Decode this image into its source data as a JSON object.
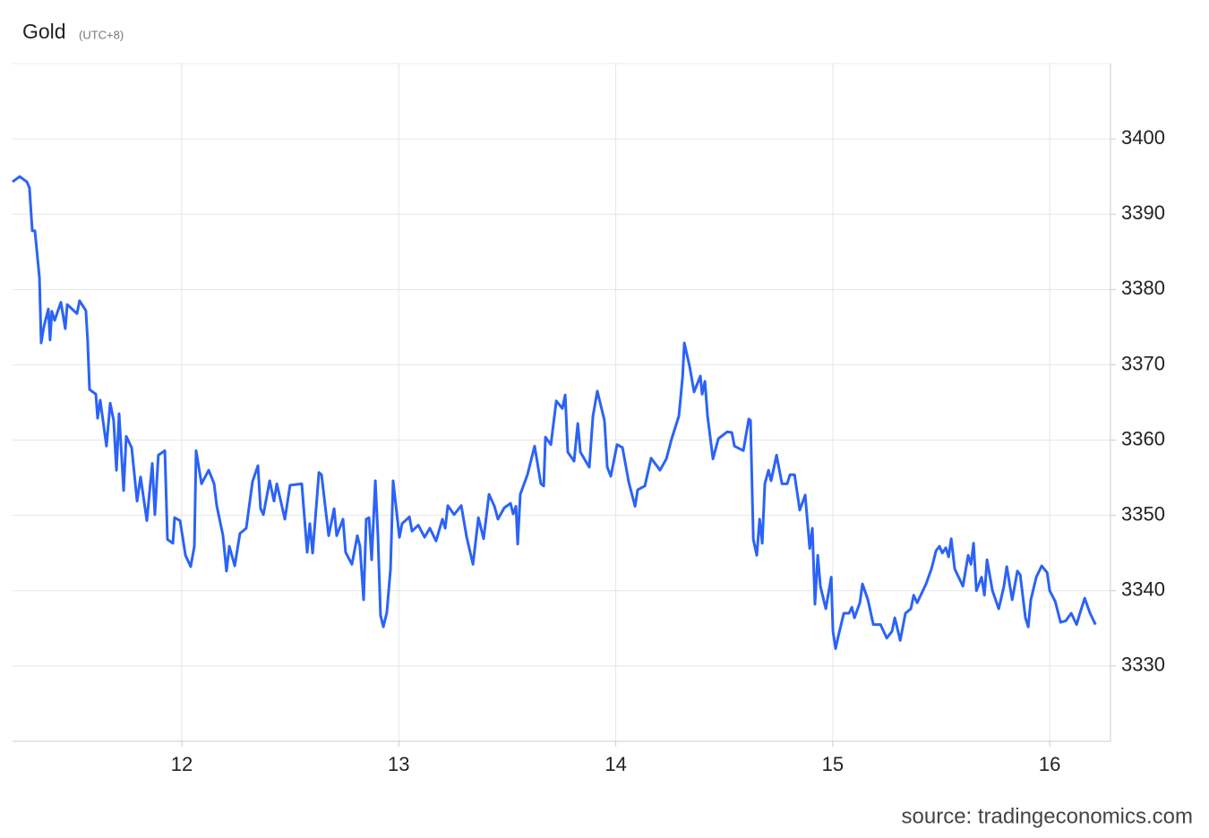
{
  "chart_data": {
    "type": "line",
    "title": "Gold",
    "subtitle": "(UTC+8)",
    "source": "source: tradingeconomics.com",
    "color": "#2b63f6",
    "grid": true,
    "y_axis_side": "right",
    "xlim": [
      11.22,
      16.28
    ],
    "ylim": [
      3320,
      3410
    ],
    "xticks": [
      12,
      13,
      14,
      15,
      16
    ],
    "yticks": [
      3330,
      3340,
      3350,
      3360,
      3370,
      3380,
      3390,
      3400
    ],
    "x": [
      11.22,
      11.253,
      11.286,
      11.298,
      11.311,
      11.323,
      11.344,
      11.352,
      11.364,
      11.385,
      11.393,
      11.401,
      11.414,
      11.443,
      11.463,
      11.472,
      11.517,
      11.529,
      11.558,
      11.566,
      11.575,
      11.604,
      11.612,
      11.624,
      11.653,
      11.67,
      11.686,
      11.699,
      11.711,
      11.732,
      11.744,
      11.769,
      11.794,
      11.81,
      11.839,
      11.864,
      11.876,
      11.892,
      11.922,
      11.934,
      11.959,
      11.967,
      11.992,
      12.017,
      12.041,
      12.058,
      12.066,
      12.091,
      12.124,
      12.149,
      12.161,
      12.19,
      12.206,
      12.219,
      12.244,
      12.268,
      12.297,
      12.326,
      12.351,
      12.363,
      12.376,
      12.405,
      12.425,
      12.438,
      12.475,
      12.499,
      12.553,
      12.578,
      12.59,
      12.603,
      12.632,
      12.644,
      12.677,
      12.702,
      12.714,
      12.743,
      12.755,
      12.784,
      12.809,
      12.821,
      12.838,
      12.85,
      12.863,
      12.875,
      12.892,
      12.904,
      12.916,
      12.929,
      12.945,
      12.962,
      12.974,
      13.003,
      13.015,
      13.049,
      13.061,
      13.09,
      13.119,
      13.143,
      13.172,
      13.201,
      13.214,
      13.226,
      13.255,
      13.288,
      13.313,
      13.342,
      13.367,
      13.391,
      13.416,
      13.441,
      13.457,
      13.486,
      13.515,
      13.527,
      13.54,
      13.548,
      13.56,
      13.593,
      13.626,
      13.655,
      13.668,
      13.676,
      13.701,
      13.726,
      13.754,
      13.767,
      13.779,
      13.808,
      13.825,
      13.837,
      13.878,
      13.895,
      13.915,
      13.948,
      13.961,
      13.977,
      14.006,
      14.031,
      14.06,
      14.089,
      14.101,
      14.134,
      14.163,
      14.204,
      14.233,
      14.258,
      14.291,
      14.308,
      14.316,
      14.341,
      14.361,
      14.39,
      14.398,
      14.411,
      14.423,
      14.448,
      14.473,
      14.514,
      14.535,
      14.547,
      14.588,
      14.613,
      14.621,
      14.634,
      14.65,
      14.663,
      14.675,
      14.687,
      14.704,
      14.716,
      14.741,
      14.766,
      14.79,
      14.803,
      14.824,
      14.848,
      14.873,
      14.894,
      14.906,
      14.918,
      14.931,
      14.943,
      14.968,
      14.993,
      15.001,
      15.013,
      15.026,
      15.051,
      15.075,
      15.088,
      15.1,
      15.125,
      15.137,
      15.162,
      15.187,
      15.22,
      15.249,
      15.273,
      15.286,
      15.311,
      15.335,
      15.36,
      15.373,
      15.389,
      15.43,
      15.455,
      15.476,
      15.492,
      15.505,
      15.521,
      15.534,
      15.546,
      15.562,
      15.6,
      15.624,
      15.637,
      15.649,
      15.662,
      15.686,
      15.699,
      15.711,
      15.736,
      15.765,
      15.789,
      15.802,
      15.827,
      15.851,
      15.864,
      15.888,
      15.901,
      15.913,
      15.938,
      15.963,
      15.988,
      16.0,
      16.025,
      16.05,
      16.074,
      16.099,
      16.124,
      16.137,
      16.161,
      16.186,
      16.211
    ],
    "values": [
      3394.3,
      3395.0,
      3394.3,
      3393.5,
      3387.8,
      3387.8,
      3381.6,
      3372.9,
      3375.0,
      3377.4,
      3373.3,
      3377.1,
      3375.9,
      3378.3,
      3374.8,
      3378.0,
      3376.8,
      3378.5,
      3377.2,
      3373.3,
      3366.7,
      3366.1,
      3362.9,
      3365.3,
      3359.2,
      3364.9,
      3362.6,
      3356.0,
      3363.5,
      3353.3,
      3360.5,
      3359.0,
      3351.9,
      3355.1,
      3349.3,
      3356.9,
      3350.1,
      3358.0,
      3358.6,
      3346.8,
      3346.3,
      3349.7,
      3349.3,
      3344.7,
      3343.2,
      3345.9,
      3358.6,
      3354.2,
      3356.0,
      3354.2,
      3351.3,
      3347.3,
      3342.6,
      3345.9,
      3343.3,
      3347.6,
      3348.3,
      3354.5,
      3356.6,
      3350.9,
      3350.1,
      3354.6,
      3351.9,
      3354.2,
      3349.5,
      3354.0,
      3354.2,
      3345.1,
      3348.9,
      3345.0,
      3355.7,
      3355.4,
      3347.3,
      3350.9,
      3347.3,
      3349.5,
      3345.1,
      3343.5,
      3347.3,
      3345.9,
      3338.8,
      3349.5,
      3349.7,
      3344.1,
      3354.6,
      3347.3,
      3336.7,
      3335.2,
      3337.1,
      3342.9,
      3354.6,
      3347.1,
      3348.9,
      3349.8,
      3347.9,
      3348.7,
      3347.1,
      3348.3,
      3346.6,
      3349.5,
      3348.3,
      3351.3,
      3350.1,
      3351.3,
      3347.1,
      3343.5,
      3349.7,
      3346.9,
      3352.8,
      3351.2,
      3349.5,
      3351.0,
      3351.6,
      3350.2,
      3351.2,
      3346.2,
      3352.8,
      3355.4,
      3359.2,
      3354.2,
      3353.9,
      3360.4,
      3359.4,
      3365.2,
      3364.2,
      3366.0,
      3358.4,
      3357.2,
      3362.2,
      3358.4,
      3356.4,
      3363.2,
      3366.5,
      3362.6,
      3356.4,
      3355.2,
      3359.4,
      3359.0,
      3354.4,
      3351.2,
      3353.4,
      3353.9,
      3357.6,
      3356.0,
      3357.5,
      3360.2,
      3363.2,
      3368.4,
      3372.9,
      3369.7,
      3366.4,
      3368.5,
      3366.1,
      3367.8,
      3363.2,
      3357.5,
      3360.2,
      3361.1,
      3361.0,
      3359.2,
      3358.6,
      3362.8,
      3362.6,
      3346.8,
      3344.7,
      3349.5,
      3346.3,
      3354.2,
      3356.0,
      3354.6,
      3358.0,
      3354.2,
      3354.2,
      3355.4,
      3355.4,
      3350.7,
      3352.7,
      3345.6,
      3348.3,
      3338.2,
      3344.7,
      3340.6,
      3337.6,
      3341.8,
      3334.6,
      3332.3,
      3334.0,
      3337.0,
      3337.0,
      3337.8,
      3336.4,
      3338.4,
      3340.9,
      3338.8,
      3335.5,
      3335.5,
      3333.7,
      3334.6,
      3336.4,
      3333.4,
      3337.0,
      3337.6,
      3339.4,
      3338.4,
      3340.9,
      3342.9,
      3345.3,
      3345.9,
      3345.0,
      3345.7,
      3344.5,
      3346.9,
      3342.9,
      3340.6,
      3344.7,
      3343.5,
      3346.3,
      3340.0,
      3341.8,
      3339.4,
      3344.1,
      3340.0,
      3337.6,
      3340.6,
      3343.2,
      3338.8,
      3342.6,
      3342.1,
      3336.4,
      3335.2,
      3338.8,
      3341.8,
      3343.3,
      3342.4,
      3340.0,
      3338.6,
      3335.8,
      3336.0,
      3337.0,
      3335.5,
      3336.8,
      3339.0,
      3337.0,
      3335.5
    ]
  }
}
